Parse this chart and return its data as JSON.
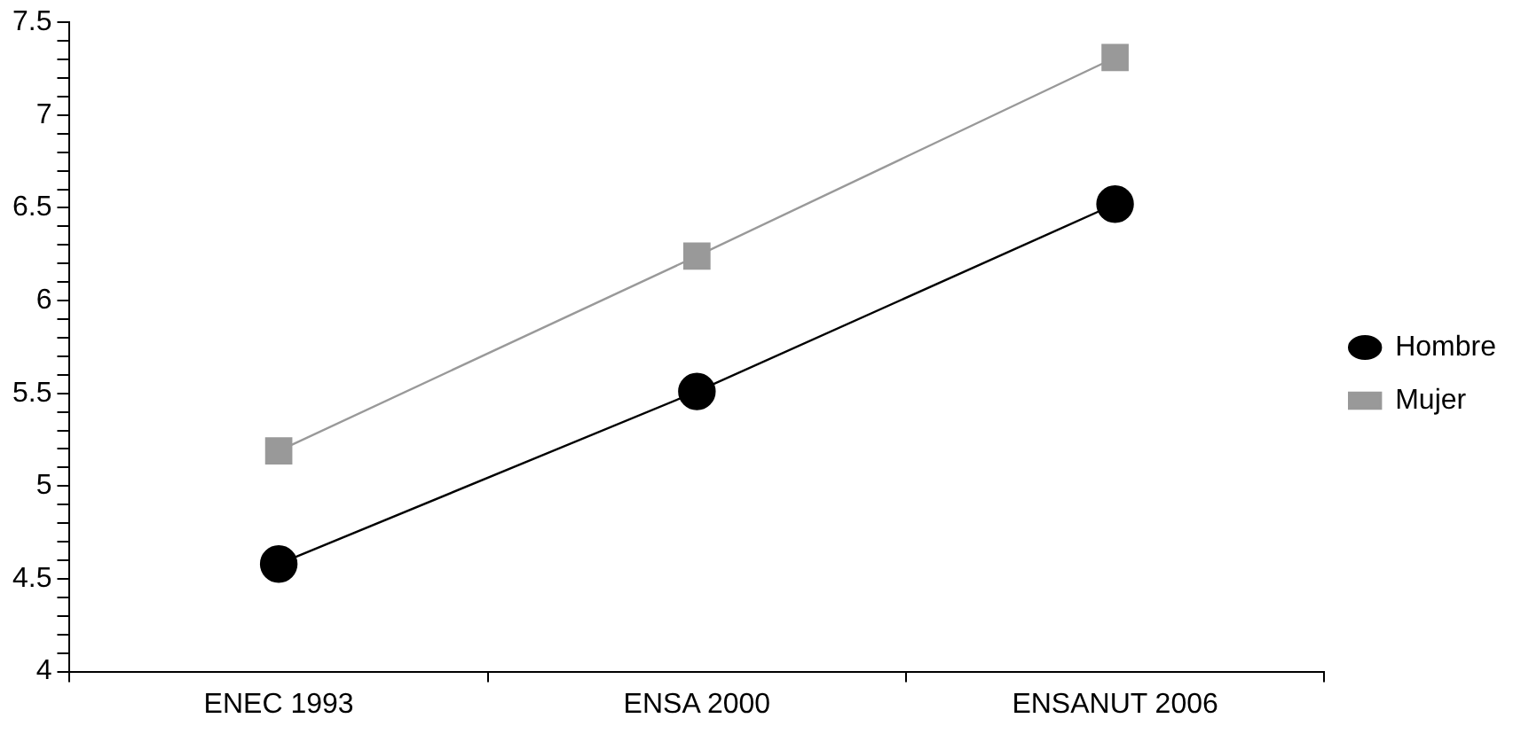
{
  "chart_data": {
    "type": "line",
    "categories": [
      "ENEC 1993",
      "ENSA 2000",
      "ENSANUT 2006"
    ],
    "series": [
      {
        "name": "Hombre",
        "color": "#000000",
        "marker": "circle",
        "values": [
          4.58,
          5.51,
          6.52
        ]
      },
      {
        "name": "Mujer",
        "color": "#999999",
        "marker": "square",
        "values": [
          5.19,
          6.24,
          7.31
        ]
      }
    ],
    "ylim": [
      4,
      7.5
    ],
    "yticks": [
      4,
      {
        "value": 4.1,
        "label": null
      },
      {
        "value": 4.2,
        "label": null
      },
      {
        "value": 4.3,
        "label": null
      },
      {
        "value": 4.4,
        "label": null
      },
      4.5,
      {
        "value": 4.6,
        "label": null
      },
      {
        "value": 4.7,
        "label": null
      },
      {
        "value": 4.8,
        "label": null
      },
      {
        "value": 4.9,
        "label": null
      },
      5,
      {
        "value": 5.1,
        "label": null
      },
      {
        "value": 5.2,
        "label": null
      },
      {
        "value": 5.3,
        "label": null
      },
      {
        "value": 5.4,
        "label": null
      },
      5.5,
      {
        "value": 5.6,
        "label": null
      },
      {
        "value": 5.7,
        "label": null
      },
      {
        "value": 5.8,
        "label": null
      },
      {
        "value": 5.9,
        "label": null
      },
      6,
      {
        "value": 6.1,
        "label": null
      },
      {
        "value": 6.2,
        "label": null
      },
      {
        "value": 6.3,
        "label": null
      },
      {
        "value": 6.4,
        "label": null
      },
      6.5,
      {
        "value": 6.6,
        "label": null
      },
      {
        "value": 6.7,
        "label": null
      },
      {
        "value": 6.8,
        "label": null
      },
      {
        "value": 6.9,
        "label": null
      },
      7,
      {
        "value": 7.1,
        "label": null
      },
      {
        "value": 7.2,
        "label": null
      },
      {
        "value": 7.3,
        "label": null
      },
      {
        "value": 7.4,
        "label": null
      },
      7.5
    ],
    "grid": false,
    "legend": "right",
    "line_style": "solid"
  }
}
